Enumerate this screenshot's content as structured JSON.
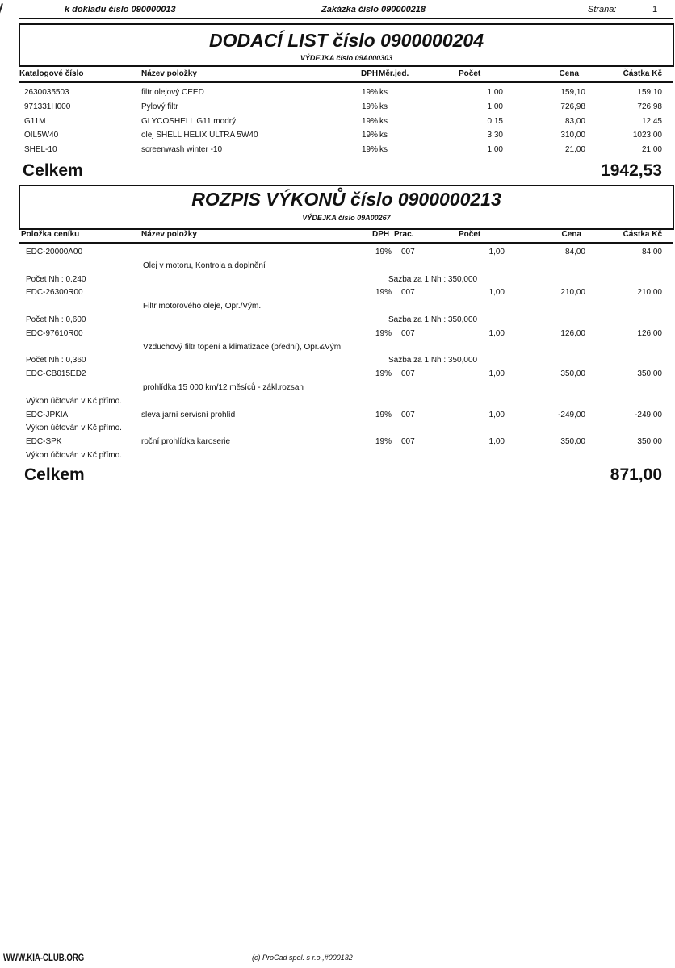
{
  "header": {
    "doklad": "k dokladu číslo 090000013",
    "zakazka": "Zakázka číslo 090000218",
    "strana_label": "Strana:",
    "strana_value": "1"
  },
  "dodaci_list": {
    "title": "DODACÍ LIST číslo 0900000204",
    "subtitle": "VÝDEJKA číslo 09A000303",
    "columns": [
      "Katalogové číslo",
      "Název položky",
      "DPH",
      "Měr.jed.",
      "Počet",
      "Cena",
      "Částka Kč"
    ],
    "rows": [
      {
        "code": "2630035503",
        "name": "filtr olejový CEED",
        "dph": "19%",
        "unit": "ks",
        "qty": "1,00",
        "price": "159,10",
        "amount": "159,10"
      },
      {
        "code": "971331H000",
        "name": "Pylový filtr",
        "dph": "19%",
        "unit": "ks",
        "qty": "1,00",
        "price": "726,98",
        "amount": "726,98"
      },
      {
        "code": "G11M",
        "name": "GLYCOSHELL G11 modrý",
        "dph": "19%",
        "unit": "ks",
        "qty": "0,15",
        "price": "83,00",
        "amount": "12,45"
      },
      {
        "code": "OIL5W40",
        "name": "olej SHELL HELIX ULTRA 5W40",
        "dph": "19%",
        "unit": "ks",
        "qty": "3,30",
        "price": "310,00",
        "amount": "1023,00"
      },
      {
        "code": "SHEL-10",
        "name": "screenwash winter -10",
        "dph": "19%",
        "unit": "ks",
        "qty": "1,00",
        "price": "21,00",
        "amount": "21,00"
      }
    ],
    "total_label": "Celkem",
    "total_value": "1942,53"
  },
  "rozpis": {
    "title": "ROZPIS VÝKONŮ číslo 0900000213",
    "subtitle": "VÝDEJKA číslo 09A00267",
    "columns": [
      "Položka ceníku",
      "Název položky",
      "DPH",
      "Prac.",
      "Počet",
      "Cena",
      "Částka Kč"
    ],
    "lines": [
      {
        "type": "item",
        "code": "EDC-20000A00",
        "name": "",
        "dph": "19%",
        "prac": "007",
        "qty": "1,00",
        "price": "84,00",
        "amount": "84,00"
      },
      {
        "type": "desc",
        "text": "Olej v motoru, Kontrola a doplnění"
      },
      {
        "type": "nh",
        "left": "Počet Nh : 0.240",
        "rate": "Sazba za 1 Nh : 350,000"
      },
      {
        "type": "item",
        "code": "EDC-26300R00",
        "name": "",
        "dph": "19%",
        "prac": "007",
        "qty": "1,00",
        "price": "210,00",
        "amount": "210,00"
      },
      {
        "type": "desc",
        "text": "Filtr motorového oleje, Opr./Vým."
      },
      {
        "type": "nh",
        "left": "Počet Nh : 0,600",
        "rate": "Sazba za 1 Nh : 350,000"
      },
      {
        "type": "item",
        "code": "EDC-97610R00",
        "name": "",
        "dph": "19%",
        "prac": "007",
        "qty": "1,00",
        "price": "126,00",
        "amount": "126,00"
      },
      {
        "type": "desc",
        "text": "Vzduchový filtr topení a klimatizace (přední), Opr.&Vým."
      },
      {
        "type": "nh",
        "left": "Počet Nh : 0,360",
        "rate": "Sazba za 1 Nh : 350,000"
      },
      {
        "type": "item",
        "code": "EDC-CB015ED2",
        "name": "",
        "dph": "19%",
        "prac": "007",
        "qty": "1,00",
        "price": "350,00",
        "amount": "350,00"
      },
      {
        "type": "desc",
        "text": "prohlídka 15 000 km/12 měsíců - zákl.rozsah"
      },
      {
        "type": "note",
        "text": "Výkon účtován v Kč přímo."
      },
      {
        "type": "item",
        "code": "EDC-JPKIA",
        "name": "sleva jarní servisní prohlíd",
        "dph": "19%",
        "prac": "007",
        "qty": "1,00",
        "price": "-249,00",
        "amount": "-249,00"
      },
      {
        "type": "note",
        "text": "Výkon účtován v Kč přímo."
      },
      {
        "type": "item",
        "code": "EDC-SPK",
        "name": "roční prohlídka karoserie",
        "dph": "19%",
        "prac": "007",
        "qty": "1,00",
        "price": "350,00",
        "amount": "350,00"
      },
      {
        "type": "note",
        "text": "Výkon účtován v Kč přímo."
      }
    ],
    "total_label": "Celkem",
    "total_value": "871,00"
  },
  "footer": {
    "watermark": "WWW.KIA-CLUB.ORG",
    "copyright": "(c) ProCad spol. s r.o.,#000132"
  }
}
